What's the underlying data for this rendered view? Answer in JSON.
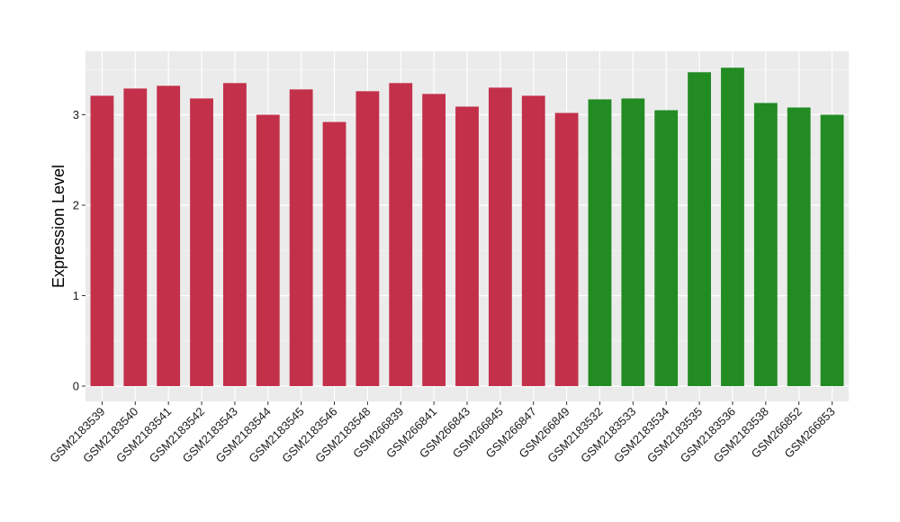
{
  "chart_data": {
    "type": "bar",
    "title": "",
    "xlabel": "",
    "ylabel": "Expression Level",
    "ylim": [
      0,
      3.7
    ],
    "yticks": [
      0,
      1,
      2,
      3
    ],
    "grid": true,
    "background": "#EBEBEB",
    "categories": [
      "GSM2183539",
      "GSM2183540",
      "GSM2183541",
      "GSM2183542",
      "GSM2183543",
      "GSM2183544",
      "GSM2183545",
      "GSM2183546",
      "GSM2183548",
      "GSM266839",
      "GSM266841",
      "GSM266843",
      "GSM266845",
      "GSM266847",
      "GSM266849",
      "GSM2183532",
      "GSM2183533",
      "GSM2183534",
      "GSM2183535",
      "GSM2183536",
      "GSM2183538",
      "GSM266852",
      "GSM266853"
    ],
    "values": [
      3.21,
      3.29,
      3.32,
      3.18,
      3.35,
      3.0,
      3.28,
      2.92,
      3.26,
      3.35,
      3.23,
      3.09,
      3.3,
      3.21,
      3.02,
      3.17,
      3.18,
      3.05,
      3.47,
      3.52,
      3.13,
      3.08,
      3.0
    ],
    "colors": [
      "#C3304A",
      "#C3304A",
      "#C3304A",
      "#C3304A",
      "#C3304A",
      "#C3304A",
      "#C3304A",
      "#C3304A",
      "#C3304A",
      "#C3304A",
      "#C3304A",
      "#C3304A",
      "#C3304A",
      "#C3304A",
      "#C3304A",
      "#228B22",
      "#228B22",
      "#228B22",
      "#228B22",
      "#228B22",
      "#228B22",
      "#228B22",
      "#228B22"
    ]
  }
}
